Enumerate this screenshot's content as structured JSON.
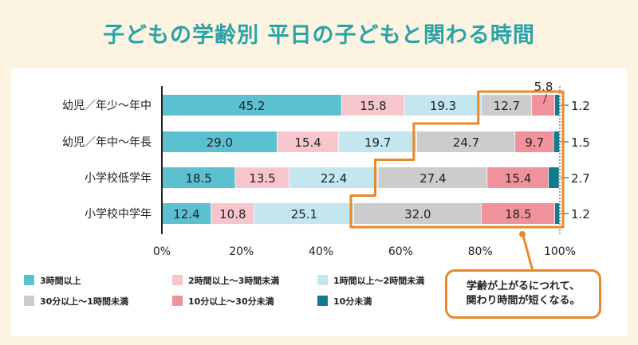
{
  "title": "子どもの学齢別 平日の子どもと関わる時間",
  "callout": "学齢が上がるにつれて、\n関わり時間が短くなる。",
  "chart_data": {
    "type": "bar",
    "orientation": "horizontal",
    "stacked": true,
    "percent": true,
    "categories": [
      "幼児／年少～年中",
      "幼児／年中～年長",
      "小学校低学年",
      "小学校中学年"
    ],
    "series": [
      {
        "name": "3時間以上",
        "color": "#5bc0d0",
        "values": [
          45.2,
          29.0,
          18.5,
          12.4
        ]
      },
      {
        "name": "2時間以上～3時間未満",
        "color": "#f7c6cc",
        "values": [
          15.8,
          15.4,
          13.5,
          10.8
        ]
      },
      {
        "name": "1時間以上～2時間未満",
        "color": "#c3e6ef",
        "values": [
          19.3,
          19.7,
          22.4,
          25.1
        ]
      },
      {
        "name": "30分以上～1時間未満",
        "color": "#cccccc",
        "values": [
          12.7,
          24.7,
          27.4,
          32.0
        ]
      },
      {
        "name": "10分以上～30分未満",
        "color": "#f0929c",
        "values": [
          5.8,
          9.7,
          15.4,
          18.5
        ]
      },
      {
        "name": "10分未満",
        "color": "#137a8c",
        "values": [
          1.2,
          1.5,
          2.7,
          1.2
        ]
      }
    ],
    "xlim": [
      0,
      100
    ],
    "xticks": [
      "0%",
      "20%",
      "40%",
      "60%",
      "80%",
      "100%"
    ],
    "labels": [
      [
        "45.2",
        "15.8",
        "19.3",
        "12.7",
        "5.8",
        "1.2"
      ],
      [
        "29.0",
        "15.4",
        "19.7",
        "24.7",
        "9.7",
        "1.5"
      ],
      [
        "18.5",
        "13.5",
        "22.4",
        "27.4",
        "15.4",
        "2.7"
      ],
      [
        "12.4",
        "10.8",
        "25.1",
        "32.0",
        "18.5",
        "1.2"
      ]
    ]
  }
}
